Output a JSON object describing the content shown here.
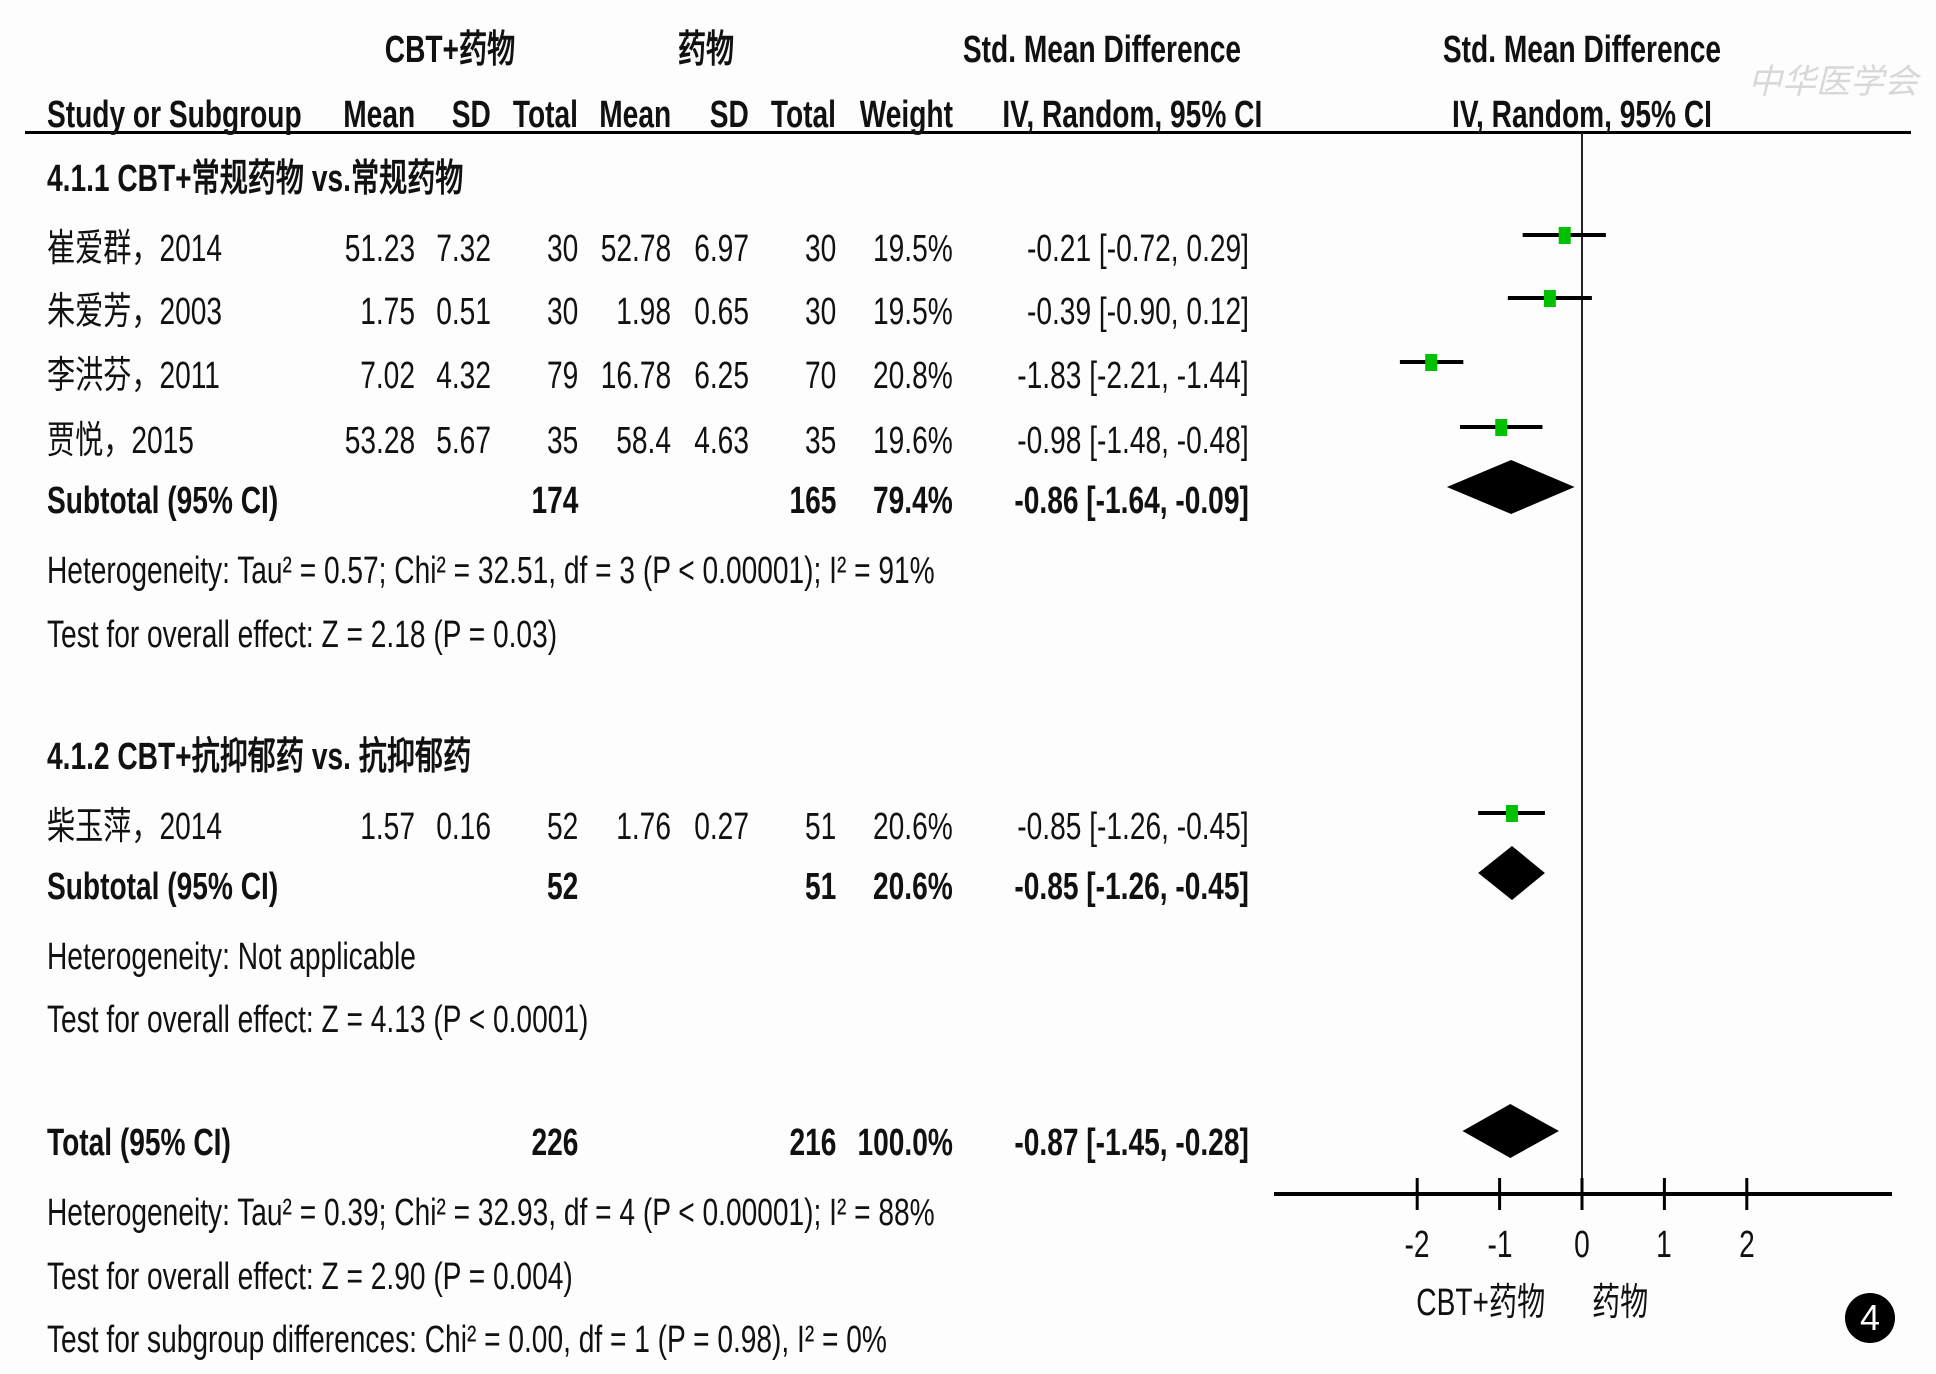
{
  "header": {
    "group1": "CBT+药物",
    "group2": "药物",
    "smd1": "Std. Mean Difference",
    "smd2": "Std. Mean Difference",
    "method1": "IV, Random, 95% CI",
    "method2": "IV, Random, 95% CI",
    "study": "Study or Subgroup",
    "mean1": "Mean",
    "sd1": "SD",
    "total1": "Total",
    "mean2": "Mean",
    "sd2": "SD",
    "total2": "Total",
    "weight": "Weight"
  },
  "watermark": "中华医学会",
  "badge": "4",
  "colors": {
    "square": "#00c000",
    "line": "#000000"
  },
  "subgroups": [
    {
      "title": "4.1.1 CBT+常规药物 vs.常规药物",
      "studies": [
        {
          "name": "崔爱群，2014",
          "mean1": "51.23",
          "sd1": "7.32",
          "total1": "30",
          "mean2": "52.78",
          "sd2": "6.97",
          "total2": "30",
          "weight": "19.5%",
          "ci": "-0.21 [-0.72, 0.29]"
        },
        {
          "name": "朱爱芳，2003",
          "mean1": "1.75",
          "sd1": "0.51",
          "total1": "30",
          "mean2": "1.98",
          "sd2": "0.65",
          "total2": "30",
          "weight": "19.5%",
          "ci": "-0.39 [-0.90, 0.12]"
        },
        {
          "name": "李洪芬，2011",
          "mean1": "7.02",
          "sd1": "4.32",
          "total1": "79",
          "mean2": "16.78",
          "sd2": "6.25",
          "total2": "70",
          "weight": "20.8%",
          "ci": "-1.83 [-2.21, -1.44]"
        },
        {
          "name": "贾悦，2015",
          "mean1": "53.28",
          "sd1": "5.67",
          "total1": "35",
          "mean2": "58.4",
          "sd2": "4.63",
          "total2": "35",
          "weight": "19.6%",
          "ci": "-0.98 [-1.48, -0.48]"
        }
      ],
      "subtotal": {
        "label": "Subtotal (95% CI)",
        "total1": "174",
        "total2": "165",
        "weight": "79.4%",
        "ci": "-0.86 [-1.64, -0.09]"
      },
      "heterogeneity": "Heterogeneity: Tau² = 0.57; Chi² = 32.51, df = 3 (P < 0.00001); I² = 91%",
      "overall": "Test for overall effect: Z = 2.18 (P = 0.03)"
    },
    {
      "title": "4.1.2 CBT+抗抑郁药 vs. 抗抑郁药",
      "studies": [
        {
          "name": "柴玉萍，2014",
          "mean1": "1.57",
          "sd1": "0.16",
          "total1": "52",
          "mean2": "1.76",
          "sd2": "0.27",
          "total2": "51",
          "weight": "20.6%",
          "ci": "-0.85 [-1.26, -0.45]"
        }
      ],
      "subtotal": {
        "label": "Subtotal (95% CI)",
        "total1": "52",
        "total2": "51",
        "weight": "20.6%",
        "ci": "-0.85 [-1.26, -0.45]"
      },
      "heterogeneity": "Heterogeneity: Not applicable",
      "overall": "Test for overall effect: Z = 4.13 (P < 0.0001)"
    }
  ],
  "total": {
    "label": "Total (95% CI)",
    "total1": "226",
    "total2": "216",
    "weight": "100.0%",
    "ci": "-0.87 [-1.45, -0.28]",
    "heterogeneity": "Heterogeneity: Tau² = 0.39; Chi² = 32.93, df = 4 (P < 0.00001); I² = 88%",
    "overall": "Test for overall effect: Z = 2.90 (P = 0.004)",
    "subgroup_diff": "Test for subgroup differences: Chi² = 0.00, df = 1 (P = 0.98), I² = 0%"
  },
  "chart_data": {
    "type": "scatter",
    "subtype": "forest",
    "xlim": [
      -2,
      2
    ],
    "xticks": [
      "-2",
      "-1",
      "0",
      "1",
      "2"
    ],
    "xlabel_left": "CBT+药物",
    "xlabel_right": "药物",
    "studies": [
      {
        "name": "崔爱群，2014",
        "smd": -0.21,
        "lo": -0.72,
        "hi": 0.29,
        "weight": 19.5
      },
      {
        "name": "朱爱芳，2003",
        "smd": -0.39,
        "lo": -0.9,
        "hi": 0.12,
        "weight": 19.5
      },
      {
        "name": "李洪芬，2011",
        "smd": -1.83,
        "lo": -2.21,
        "hi": -1.44,
        "weight": 20.8
      },
      {
        "name": "贾悦，2015",
        "smd": -0.98,
        "lo": -1.48,
        "hi": -0.48,
        "weight": 19.6
      },
      {
        "name": "柴玉萍，2014",
        "smd": -0.85,
        "lo": -1.26,
        "hi": -0.45,
        "weight": 20.6
      }
    ],
    "pooled": [
      {
        "name": "Subtotal 4.1.1",
        "smd": -0.86,
        "lo": -1.64,
        "hi": -0.09
      },
      {
        "name": "Subtotal 4.1.2",
        "smd": -0.85,
        "lo": -1.26,
        "hi": -0.45
      },
      {
        "name": "Total",
        "smd": -0.87,
        "lo": -1.45,
        "hi": -0.28
      }
    ]
  }
}
